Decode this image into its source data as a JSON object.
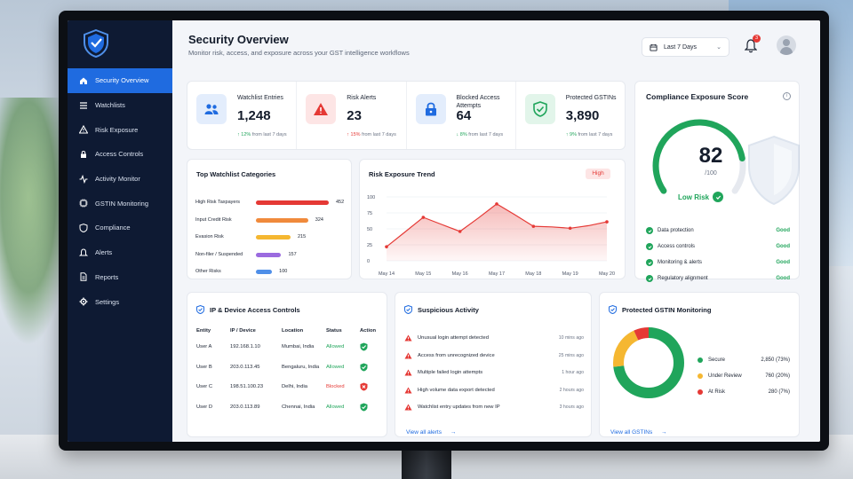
{
  "header": {
    "title": "Security Overview",
    "subtitle": "Monitor risk, access, and exposure across your GST intelligence workflows",
    "date_range": "Last 7 Days",
    "notifications": "3"
  },
  "sidebar": {
    "items": [
      {
        "label": "Security Overview",
        "icon": "home-icon",
        "active": true
      },
      {
        "label": "Watchlists",
        "icon": "list-icon"
      },
      {
        "label": "Risk Exposure",
        "icon": "warning-icon"
      },
      {
        "label": "Access Controls",
        "icon": "lock-icon"
      },
      {
        "label": "Activity Monitor",
        "icon": "activity-icon"
      },
      {
        "label": "GSTIN Monitoring",
        "icon": "chip-icon"
      },
      {
        "label": "Compliance",
        "icon": "shield-icon"
      },
      {
        "label": "Alerts",
        "icon": "bell-icon"
      },
      {
        "label": "Reports",
        "icon": "file-icon"
      },
      {
        "label": "Settings",
        "icon": "gear-icon"
      }
    ]
  },
  "stats": [
    {
      "label": "Watchlist Entries",
      "value": "1,248",
      "change": "12%",
      "change_text": "from last 7 days",
      "direction": "up",
      "color": "#1f6be0",
      "bg": "#e3edfc"
    },
    {
      "label": "Risk Alerts",
      "value": "23",
      "change": "15%",
      "change_text": "from last 7 days",
      "direction": "up",
      "color": "#e53935",
      "bg": "#fde5e5"
    },
    {
      "label": "Blocked Access Attempts",
      "value": "64",
      "change": "8%",
      "change_text": "from last 7 days",
      "direction": "down",
      "color": "#1f6be0",
      "bg": "#e3edfc"
    },
    {
      "label": "Protected GSTINs",
      "value": "3,890",
      "change": "9%",
      "change_text": "from last 7 days",
      "direction": "up",
      "color": "#20a55b",
      "bg": "#e2f5ea"
    }
  ],
  "compliance": {
    "title": "Compliance Exposure Score",
    "score": "82",
    "denominator": "/100",
    "score_fraction": 0.82,
    "status": "Low Risk",
    "rows": [
      {
        "label": "Data protection",
        "status": "Good"
      },
      {
        "label": "Access controls",
        "status": "Good"
      },
      {
        "label": "Monitoring & alerts",
        "status": "Good"
      },
      {
        "label": "Regulatory alignment",
        "status": "Good"
      }
    ]
  },
  "categories": {
    "title": "Top Watchlist Categories",
    "max": 452,
    "items": [
      {
        "label": "High Risk Taxpayers",
        "value": 452,
        "color": "#e53935"
      },
      {
        "label": "Input Credit Risk",
        "value": 324,
        "color": "#f08a3c"
      },
      {
        "label": "Evasion Risk",
        "value": 215,
        "color": "#f5b731"
      },
      {
        "label": "Non-filer / Suspended",
        "value": 157,
        "color": "#9b6bdf"
      },
      {
        "label": "Other Risks",
        "value": 100,
        "color": "#4f8fe8"
      }
    ]
  },
  "trend": {
    "title": "Risk Exposure Trend",
    "badge": "High"
  },
  "chart_data": {
    "type": "area",
    "title": "Risk Exposure Trend",
    "categories": [
      "May 14",
      "May 15",
      "May 16",
      "May 17",
      "May 18",
      "May 19",
      "May 20"
    ],
    "x": [
      0,
      0.5,
      1,
      1.5,
      2,
      2.5,
      3,
      3.5,
      4,
      4.5,
      5,
      5.5,
      6
    ],
    "values": [
      22,
      45,
      68,
      57,
      46,
      67,
      89,
      72,
      54,
      53,
      51,
      55,
      61
    ],
    "yticks": [
      "100",
      "75",
      "50",
      "25",
      "0"
    ],
    "ylim": [
      0,
      100
    ],
    "color": "#e53935"
  },
  "ip_access": {
    "title": "IP & Device Access Controls",
    "columns": [
      "Entity",
      "IP / Device",
      "Location",
      "Status",
      "Action"
    ],
    "rows": [
      {
        "entity": "User A",
        "ip": "192.168.1.10",
        "location": "Mumbai, India",
        "status": "Allowed"
      },
      {
        "entity": "User B",
        "ip": "203.0.113.45",
        "location": "Bengaluru, India",
        "status": "Allowed"
      },
      {
        "entity": "User C",
        "ip": "198.51.100.23",
        "location": "Delhi, India",
        "status": "Blocked"
      },
      {
        "entity": "User D",
        "ip": "203.0.113.89",
        "location": "Chennai, India",
        "status": "Allowed"
      }
    ]
  },
  "suspicious": {
    "title": "Suspicious Activity",
    "items": [
      {
        "text": "Unusual login attempt detected",
        "time": "10 mins ago"
      },
      {
        "text": "Access from unrecognized device",
        "time": "25 mins ago"
      },
      {
        "text": "Multiple failed login attempts",
        "time": "1 hour ago"
      },
      {
        "text": "High volume data export detected",
        "time": "2 hours ago"
      },
      {
        "text": "Watchlist entry updates from new IP",
        "time": "3 hours ago"
      }
    ],
    "link": "View all alerts"
  },
  "gstin": {
    "title": "Protected GSTIN Monitoring",
    "segments": [
      {
        "label": "Secure",
        "value": "2,850 (73%)",
        "pct": 73,
        "color": "#20a55b"
      },
      {
        "label": "Under Review",
        "value": "760 (20%)",
        "pct": 20,
        "color": "#f5b731"
      },
      {
        "label": "At Risk",
        "value": "280 (7%)",
        "pct": 7,
        "color": "#e53935"
      }
    ],
    "link": "View all GSTINs"
  }
}
